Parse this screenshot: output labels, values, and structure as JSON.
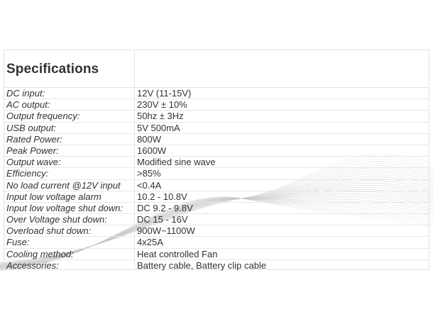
{
  "specifications": {
    "heading": "Specifications",
    "rows": [
      {
        "label": "DC input:",
        "value": "12V (11-15V)"
      },
      {
        "label": "AC output:",
        "value": "230V ± 10%"
      },
      {
        "label": "Output frequency:",
        "value": "50hz ± 3Hz"
      },
      {
        "label": "USB output:",
        "value": "5V 500mA"
      },
      {
        "label": "Rated Power:",
        "value": "800W"
      },
      {
        "label": "Peak Power:",
        "value": "1600W"
      },
      {
        "label": "Output wave:",
        "value": "Modified sine wave"
      },
      {
        "label": "Efficiency:",
        "value": ">85%"
      },
      {
        "label": "No load current @12V input",
        "value": "<0.4A"
      },
      {
        "label": "Input low voltage alarm",
        "value": "10.2 - 10.8V"
      },
      {
        "label": "Input low voltage shut down:",
        "value": "DC 9.2 - 9.8V"
      },
      {
        "label": "Over Voltage shut down:",
        "value": "DC 15 - 16V"
      },
      {
        "label": "Overload shut down:",
        "value": "900W~1100W"
      },
      {
        "label": "Fuse:",
        "value": "4x25A"
      },
      {
        "label": "Cooling method:",
        "value": "Heat controlled Fan"
      },
      {
        "label": "Accessories:",
        "value": "Battery cable, Battery clip cable"
      }
    ]
  },
  "colors": {
    "text": "#333333",
    "grid_line": "#e2e2e2",
    "wave_line": "#c8c8c8"
  }
}
